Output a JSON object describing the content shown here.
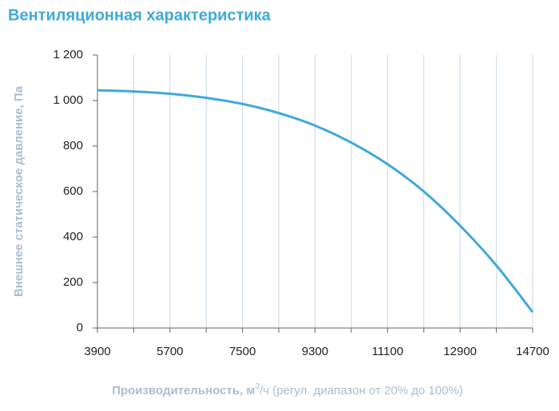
{
  "chart_data": {
    "type": "line",
    "title": "Вентиляционная характеристика",
    "y_label": "Внешнее статическое давление, Па",
    "x_label": {
      "bold": "Производительность,",
      "unit": "м",
      "sup": "3",
      "rest": "/ч (регул. диапазон от 20% до 100%)"
    },
    "x": [
      3900,
      4800,
      5700,
      6600,
      7500,
      8400,
      9300,
      10200,
      11100,
      12000,
      12900,
      13800,
      14700
    ],
    "series": [
      {
        "color": "#3fa9dc",
        "values": [
          1045,
          1040,
          1030,
          1012,
          985,
          945,
          890,
          815,
          720,
          600,
          450,
          275,
          70
        ]
      }
    ],
    "xlim": [
      3900,
      14700
    ],
    "xticks": [
      3900,
      5700,
      7500,
      9300,
      11100,
      12900,
      14700
    ],
    "x_minor_grid": [
      4800,
      6600,
      8400,
      10200,
      12000,
      13800
    ],
    "ylim": [
      0,
      1200
    ],
    "yticks": [
      0,
      200,
      400,
      600,
      800,
      {
        "value": 1000,
        "label": "1 000"
      },
      {
        "value": 1200,
        "label": "1 200"
      }
    ],
    "grid": "x"
  }
}
